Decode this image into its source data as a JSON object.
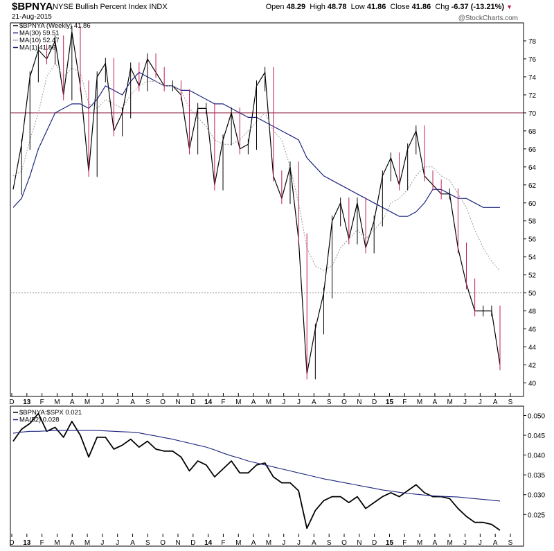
{
  "header": {
    "symbol": "$BPNYA",
    "description": "NYSE Bullish Percent Index",
    "exchange": "INDX",
    "date": "21-Aug-2015",
    "quote": {
      "open_label": "Open",
      "open": "48.29",
      "high_label": "High",
      "high": "48.78",
      "low_label": "Low",
      "low": "41.86",
      "close_label": "Close",
      "close": "41.86",
      "chg_label": "Chg",
      "chg": "-6.37 (-13.21%)"
    },
    "watermark": "@StockCharts.com"
  },
  "chart_data": [
    {
      "type": "line",
      "legend": [
        {
          "label": "$BPNYA (Weekly) 41.86",
          "color": "#000000"
        },
        {
          "label": "MA(30) 59.51",
          "color": "#1a237e"
        },
        {
          "label": "MA(10) 52.47",
          "color": "#999999"
        },
        {
          "label": "MA(1) 41.86",
          "color": "#1a237e"
        }
      ],
      "y_ticks": [
        "40",
        "42",
        "44",
        "46",
        "48",
        "50",
        "52",
        "54",
        "56",
        "58",
        "60",
        "62",
        "64",
        "66",
        "68",
        "70",
        "72",
        "74",
        "76",
        "78"
      ],
      "x_labels": [
        "D",
        "13",
        "F",
        "M",
        "A",
        "M",
        "J",
        "J",
        "A",
        "S",
        "O",
        "N",
        "D",
        "14",
        "F",
        "M",
        "A",
        "M",
        "J",
        "J",
        "A",
        "S",
        "O",
        "N",
        "D",
        "15",
        "F",
        "M",
        "A",
        "M",
        "J",
        "J",
        "A",
        "S"
      ],
      "ylim": [
        38.5,
        80
      ],
      "reference_lines": [
        70,
        50
      ],
      "series": [
        {
          "values": [
            61.5,
            66.5,
            74,
            77,
            76,
            78,
            72,
            79,
            73,
            63.5,
            74,
            75.5,
            68,
            70,
            75,
            73,
            76,
            74.5,
            73,
            73,
            72,
            66,
            70.5,
            70.5,
            62,
            67,
            70,
            66,
            66.5,
            73,
            74.5,
            63,
            60.5,
            64,
            56,
            41,
            46,
            50,
            58,
            60,
            56,
            60,
            55,
            58,
            63,
            65,
            62,
            66,
            68,
            63,
            62,
            61,
            61,
            55,
            51,
            48,
            48,
            48,
            42
          ]
        },
        {
          "values": [
            59.5,
            60.5,
            63,
            66,
            68,
            70,
            70.5,
            71,
            71,
            70.5,
            71.5,
            73,
            72.5,
            72,
            73.5,
            74.5,
            74,
            73.5,
            73,
            73,
            72.5,
            72.5,
            72,
            71.5,
            71,
            71,
            70.5,
            70,
            69.5,
            69.5,
            69,
            68.5,
            68,
            67.5,
            67,
            65,
            64,
            63,
            62.5,
            62,
            61.5,
            61,
            60.5,
            60,
            59.5,
            59,
            58.5,
            58.5,
            59,
            60,
            61.5,
            61.5,
            61,
            60.5,
            60.5,
            60,
            59.5,
            59.5,
            59.5
          ]
        },
        {
          "values": [
            63,
            63.5,
            67,
            70,
            74,
            75.5,
            74,
            75,
            74.5,
            71,
            70.5,
            71.5,
            71,
            70.5,
            72,
            73,
            73.5,
            73.5,
            73,
            73,
            72.5,
            70.5,
            69.5,
            68.5,
            67,
            66.5,
            66.5,
            67,
            68,
            69,
            70,
            68,
            67,
            64,
            60,
            55,
            53,
            52.5,
            53,
            55,
            56,
            57,
            56,
            57,
            58,
            60,
            60.5,
            61.5,
            63,
            64,
            64,
            63,
            62.5,
            61,
            59.5,
            57,
            55,
            53.5,
            52.47
          ]
        }
      ]
    },
    {
      "type": "line",
      "legend": [
        {
          "label": "$BPNYA:$SPX 0.021",
          "color": "#000000"
        },
        {
          "label": "MA(52) 0.028",
          "color": "#1a237e"
        }
      ],
      "y_ticks": [
        "0.025",
        "0.030",
        "0.035",
        "0.040",
        "0.045",
        "0.050"
      ],
      "ylim": [
        0.0205,
        0.052
      ],
      "series": [
        {
          "values": [
            0.0435,
            0.0465,
            0.048,
            0.0505,
            0.046,
            0.047,
            0.0445,
            0.0485,
            0.045,
            0.0395,
            0.0445,
            0.0445,
            0.0415,
            0.0425,
            0.044,
            0.042,
            0.0435,
            0.0415,
            0.041,
            0.041,
            0.0395,
            0.036,
            0.0385,
            0.0375,
            0.0345,
            0.0365,
            0.0385,
            0.0355,
            0.0355,
            0.0375,
            0.038,
            0.0345,
            0.033,
            0.033,
            0.031,
            0.0215,
            0.026,
            0.0285,
            0.0295,
            0.0295,
            0.028,
            0.0295,
            0.0265,
            0.028,
            0.0295,
            0.0305,
            0.0295,
            0.031,
            0.0325,
            0.0305,
            0.0295,
            0.0295,
            0.029,
            0.0265,
            0.0245,
            0.023,
            0.023,
            0.0225,
            0.021
          ]
        },
        {
          "values": [
            0.0455,
            0.0458,
            0.046,
            0.046,
            0.0461,
            0.0462,
            0.0462,
            0.0462,
            0.0462,
            0.0462,
            0.0462,
            0.0461,
            0.046,
            0.0459,
            0.0458,
            0.0456,
            0.0452,
            0.0448,
            0.0444,
            0.044,
            0.0435,
            0.043,
            0.0425,
            0.042,
            0.0413,
            0.0405,
            0.0398,
            0.0392,
            0.0385,
            0.038,
            0.0375,
            0.037,
            0.0365,
            0.036,
            0.0355,
            0.035,
            0.0345,
            0.034,
            0.0336,
            0.0332,
            0.0328,
            0.0324,
            0.032,
            0.0316,
            0.0312,
            0.0309,
            0.0306,
            0.0303,
            0.0301,
            0.0299,
            0.0297,
            0.0296,
            0.0295,
            0.0294,
            0.0292,
            0.029,
            0.0288,
            0.0286,
            0.0284
          ]
        }
      ]
    }
  ]
}
